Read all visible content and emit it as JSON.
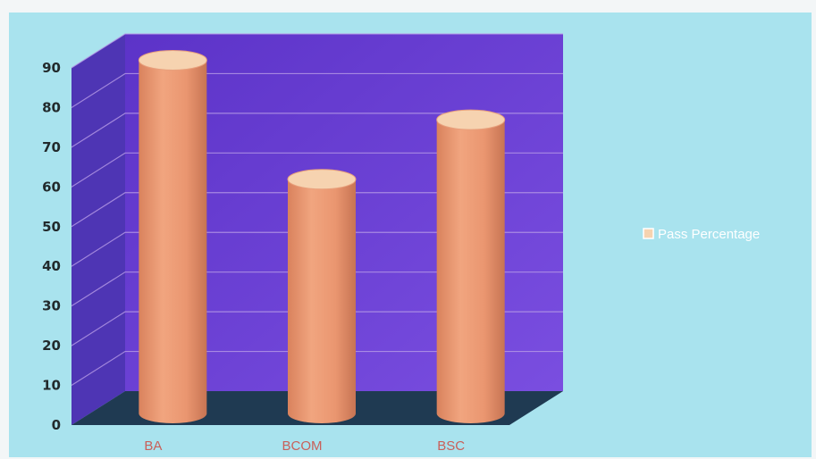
{
  "chart_data": {
    "type": "bar",
    "style": "3d-cylinder",
    "categories": [
      "BA",
      "BCOM",
      "BSC"
    ],
    "series": [
      {
        "name": "Pass Percentage",
        "values": [
          89,
          59,
          74
        ]
      }
    ],
    "ylim": [
      0,
      90
    ],
    "yticks": [
      0,
      10,
      20,
      30,
      40,
      50,
      60,
      70,
      80,
      90
    ],
    "grid": true,
    "legend_position": "right",
    "colors": {
      "background": "#a9e3ee",
      "back_wall": "#6c3fd6",
      "side_wall": "#4e35b4",
      "floor": "#1f3a52",
      "gridline": "#b69be6",
      "bar": "#ec9a72",
      "bar_top": "#f6d3b0",
      "x_tick_text": "#c9605a",
      "y_tick_text": "#222a2c"
    }
  }
}
